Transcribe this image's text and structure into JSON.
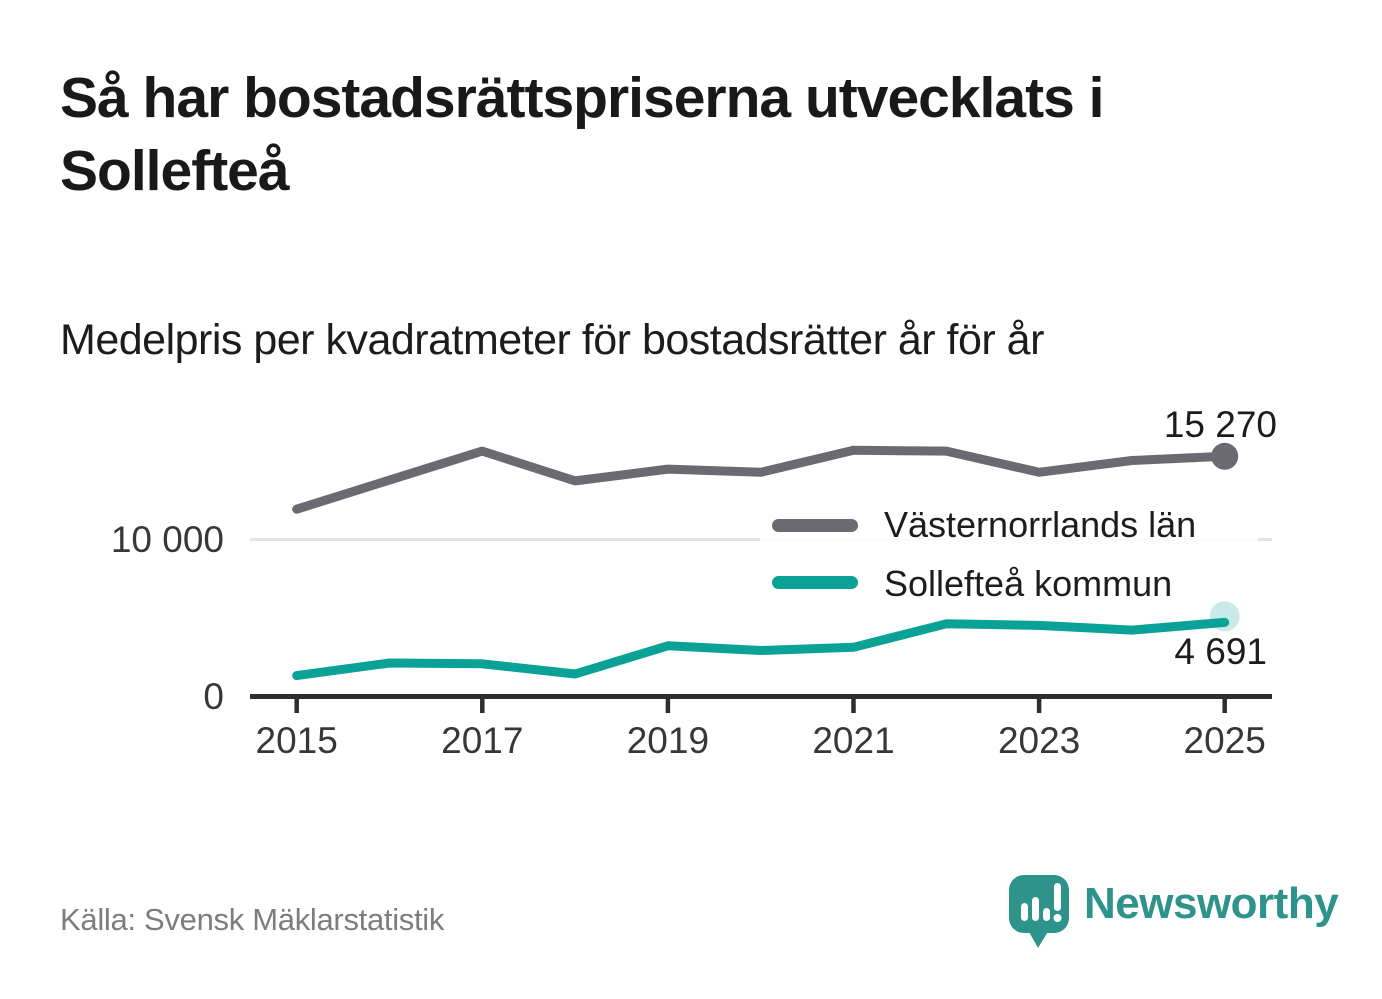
{
  "title_lines": [
    "Så har bostadsrättspriserna utvecklats i",
    "Sollefteå"
  ],
  "subtitle": "Medelpris per kvadratmeter för bostadsrätter år för år",
  "source": "Källa: Svensk Mäklarstatistik",
  "logo": {
    "text": "Newsworthy",
    "icon": "bar-chart-speech-bubble-icon"
  },
  "colors": {
    "series_gray": "#6b6a70",
    "series_teal": "#0aa196",
    "brand_teal": "#2e938b",
    "axis": "#2e2e2e",
    "gridline": "#e4e4e4",
    "text_dark": "#1c1c1a",
    "text_axis": "#373737",
    "text_source": "#7d7d7d"
  },
  "chart_data": {
    "type": "line",
    "x": [
      2015,
      2016,
      2017,
      2018,
      2019,
      2020,
      2021,
      2022,
      2023,
      2024,
      2025
    ],
    "series": [
      {
        "name": "Västernorrlands län",
        "color": "#6b6a70",
        "values": [
          11900,
          13750,
          15600,
          13700,
          14450,
          14250,
          15650,
          15600,
          14250,
          15000,
          15270
        ],
        "end_label": "15 270",
        "end_marker": "solid-dot"
      },
      {
        "name": "Sollefteå kommun",
        "color": "#0aa196",
        "values": [
          1300,
          2100,
          2050,
          1400,
          3200,
          2900,
          3100,
          4600,
          4500,
          4200,
          4691
        ],
        "end_label": "4 691",
        "end_marker": "pale-halo"
      }
    ],
    "x_ticks": [
      2015,
      2017,
      2019,
      2021,
      2023,
      2025
    ],
    "y_ticks": [
      {
        "value": 0,
        "label": "0"
      },
      {
        "value": 10000,
        "label": "10 000"
      }
    ],
    "ylim": [
      0,
      19500
    ],
    "grid": "horizontal-at-10000-only",
    "legend_position": "inside-center-right"
  }
}
